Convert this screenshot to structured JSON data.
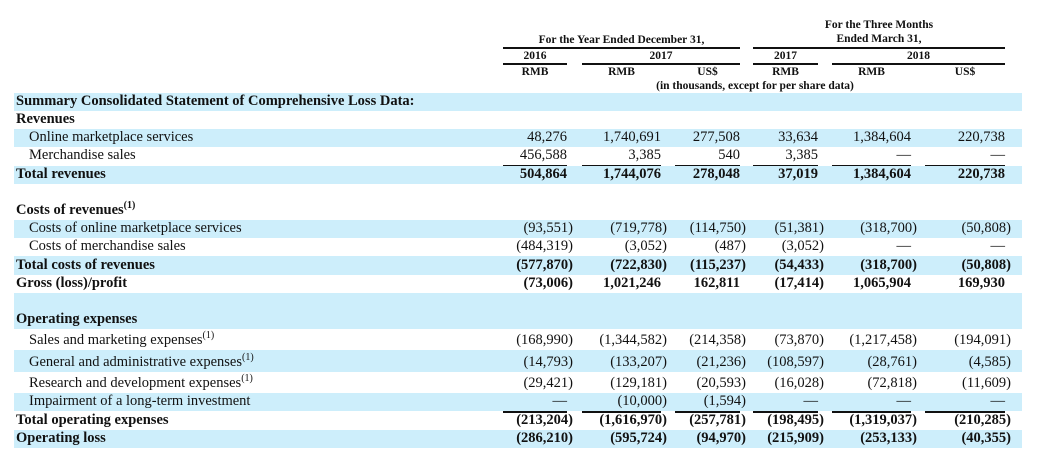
{
  "header": {
    "year_group": "For the Year Ended December 31,",
    "quarter_group_line1": "For the Three Months",
    "quarter_group_line2": "Ended March 31,",
    "years": [
      "2016",
      "2017",
      "2017",
      "2018"
    ],
    "currencies": [
      "RMB",
      "RMB",
      "US$",
      "RMB",
      "RMB",
      "US$"
    ],
    "units_note": "(in thousands, except for per share data)"
  },
  "rows": [
    {
      "label": "Summary Consolidated Statement of Comprehensive Loss Data:",
      "style": "bold",
      "shade": true,
      "values": []
    },
    {
      "label": "Revenues",
      "style": "bold",
      "shade": false,
      "values": []
    },
    {
      "label": "Online marketplace services",
      "indent": true,
      "shade": true,
      "values": [
        "48,276",
        "1,740,691",
        "277,508",
        "33,634",
        "1,384,604",
        "220,738"
      ]
    },
    {
      "label": "Merchandise sales",
      "indent": true,
      "shade": false,
      "underline": true,
      "values": [
        "456,588",
        "3,385",
        "540",
        "3,385",
        "—",
        "—"
      ]
    },
    {
      "label": "Total revenues",
      "style": "bold",
      "shade": true,
      "values": [
        "504,864",
        "1,744,076",
        "278,048",
        "37,019",
        "1,384,604",
        "220,738"
      ]
    },
    {
      "label": "",
      "shade": false,
      "values": []
    },
    {
      "label": "Costs of revenues",
      "note": "(1)",
      "style": "bold",
      "shade": false,
      "values": []
    },
    {
      "label": "Costs of online marketplace services",
      "indent": true,
      "shade": true,
      "values": [
        "(93,551)",
        "(719,778)",
        "(114,750)",
        "(51,381)",
        "(318,700)",
        "(50,808)"
      ]
    },
    {
      "label": "Costs of merchandise sales",
      "indent": true,
      "shade": false,
      "underline": true,
      "values": [
        "(484,319)",
        "(3,052)",
        "(487)",
        "(3,052)",
        "—",
        "—"
      ]
    },
    {
      "label": "Total costs of revenues",
      "style": "bold",
      "shade": true,
      "values": [
        "(577,870)",
        "(722,830)",
        "(115,237)",
        "(54,433)",
        "(318,700)",
        "(50,808)"
      ]
    },
    {
      "label": "Gross (loss)/profit",
      "style": "bold",
      "shade": false,
      "values": [
        "(73,006)",
        "1,021,246",
        "162,811",
        "(17,414)",
        "1,065,904",
        "169,930"
      ]
    },
    {
      "label": "",
      "shade": true,
      "values": []
    },
    {
      "label": "Operating expenses",
      "style": "bold",
      "shade": true,
      "values": []
    },
    {
      "label": "Sales and marketing expenses",
      "note": "(1)",
      "indent": true,
      "shade": false,
      "values": [
        "(168,990)",
        "(1,344,582)",
        "(214,358)",
        "(73,870)",
        "(1,217,458)",
        "(194,091)"
      ]
    },
    {
      "label": "General and administrative expenses",
      "note": "(1)",
      "indent": true,
      "shade": true,
      "values": [
        "(14,793)",
        "(133,207)",
        "(21,236)",
        "(108,597)",
        "(28,761)",
        "(4,585)"
      ]
    },
    {
      "label": "Research and development expenses",
      "note": "(1)",
      "indent": true,
      "shade": false,
      "values": [
        "(29,421)",
        "(129,181)",
        "(20,593)",
        "(16,028)",
        "(72,818)",
        "(11,609)"
      ]
    },
    {
      "label": "Impairment of a long-term investment",
      "indent": true,
      "shade": true,
      "underline": true,
      "values": [
        "—",
        "(10,000)",
        "(1,594)",
        "—",
        "—",
        "—"
      ]
    },
    {
      "label": "Total operating expenses",
      "style": "bold",
      "shade": false,
      "values": [
        "(213,204)",
        "(1,616,970)",
        "(257,781)",
        "(198,495)",
        "(1,319,037)",
        "(210,285)"
      ]
    },
    {
      "label": "Operating loss",
      "style": "bold",
      "shade": true,
      "values": [
        "(286,210)",
        "(595,724)",
        "(94,970)",
        "(215,909)",
        "(253,133)",
        "(40,355)"
      ]
    }
  ],
  "colors": {
    "row_shade": "#cdeefb",
    "text": "#111111"
  }
}
